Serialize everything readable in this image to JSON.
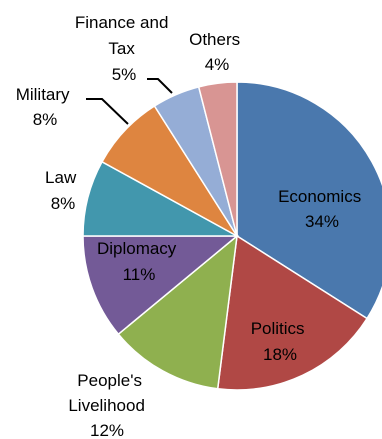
{
  "chart_data": {
    "type": "pie",
    "title": "",
    "slices": [
      {
        "label": "Economics",
        "pct_label": "34%",
        "value": 34,
        "color": "#4a78ad"
      },
      {
        "label": "Politics",
        "pct_label": "18%",
        "value": 18,
        "color": "#b04845"
      },
      {
        "label": "People's Livelihood",
        "pct_label": "12%",
        "value": 12,
        "color": "#8fb04f"
      },
      {
        "label": "Diplomacy",
        "pct_label": "11%",
        "value": 11,
        "color": "#735a97"
      },
      {
        "label": "Law",
        "pct_label": "8%",
        "value": 8,
        "color": "#4297ad"
      },
      {
        "label": "Military",
        "pct_label": "8%",
        "value": 8,
        "color": "#de8540"
      },
      {
        "label": "Finance and Tax",
        "pct_label": "5%",
        "value": 5,
        "color": "#95add6"
      },
      {
        "label": "Others",
        "pct_label": "4%",
        "value": 4,
        "color": "#d89593"
      }
    ],
    "legend": "none",
    "data_labels": "category and percentage"
  }
}
